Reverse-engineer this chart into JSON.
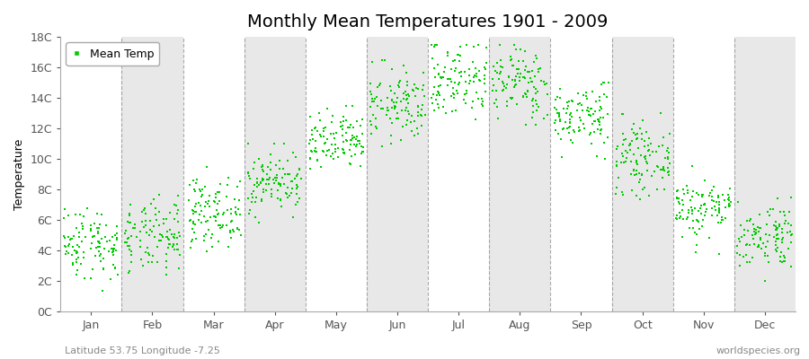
{
  "title": "Monthly Mean Temperatures 1901 - 2009",
  "ylabel": "Temperature",
  "subtitle": "Latitude 53.75 Longitude -7.25",
  "watermark": "worldspecies.org",
  "legend_label": "Mean Temp",
  "months": [
    "Jan",
    "Feb",
    "Mar",
    "Apr",
    "May",
    "Jun",
    "Jul",
    "Aug",
    "Sep",
    "Oct",
    "Nov",
    "Dec"
  ],
  "monthly_means": [
    4.5,
    4.8,
    6.5,
    8.5,
    11.0,
    13.5,
    15.2,
    15.0,
    12.8,
    10.0,
    6.8,
    5.0
  ],
  "monthly_stds": [
    1.2,
    1.2,
    1.1,
    1.0,
    1.0,
    1.2,
    1.3,
    1.2,
    1.1,
    1.1,
    1.0,
    1.1
  ],
  "monthly_mins": [
    0.5,
    1.0,
    2.5,
    5.5,
    8.0,
    10.5,
    12.5,
    12.0,
    10.0,
    6.5,
    3.5,
    2.0
  ],
  "monthly_maxs": [
    7.5,
    8.0,
    9.5,
    11.0,
    13.5,
    16.5,
    17.5,
    17.5,
    15.0,
    13.5,
    11.0,
    7.5
  ],
  "n_years": 109,
  "dot_color": "#00cc00",
  "dot_size": 3,
  "background_color": "#ffffff",
  "band_colors": [
    "#ffffff",
    "#e8e8e8"
  ],
  "ylim": [
    0,
    18
  ],
  "yticks": [
    0,
    2,
    4,
    6,
    8,
    10,
    12,
    14,
    16,
    18
  ],
  "ytick_labels": [
    "0C",
    "2C",
    "4C",
    "6C",
    "8C",
    "10C",
    "12C",
    "14C",
    "16C",
    "18C"
  ],
  "title_fontsize": 14,
  "axis_fontsize": 9,
  "label_fontsize": 9,
  "grid_color": "#888888",
  "seed": 42
}
